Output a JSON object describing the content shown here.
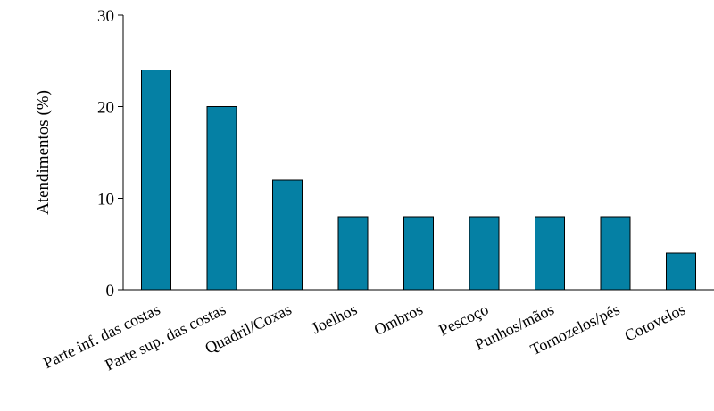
{
  "chart_data": {
    "type": "bar",
    "categories": [
      "Parte inf. das costas",
      "Parte sup. das costas",
      "Quadril/Coxas",
      "Joelhos",
      "Ombros",
      "Pescoço",
      "Punhos/mãos",
      "Tornozelos/pés",
      "Cotovelos"
    ],
    "values": [
      24,
      20,
      12,
      8,
      8,
      8,
      8,
      8,
      4
    ],
    "title": "",
    "xlabel": "",
    "ylabel": "Atendimentos (%)",
    "ylim": [
      0,
      30
    ],
    "yticks": [
      0,
      10,
      20,
      30
    ],
    "grid": false,
    "legend": "none",
    "bar_color": "#0580a4"
  }
}
